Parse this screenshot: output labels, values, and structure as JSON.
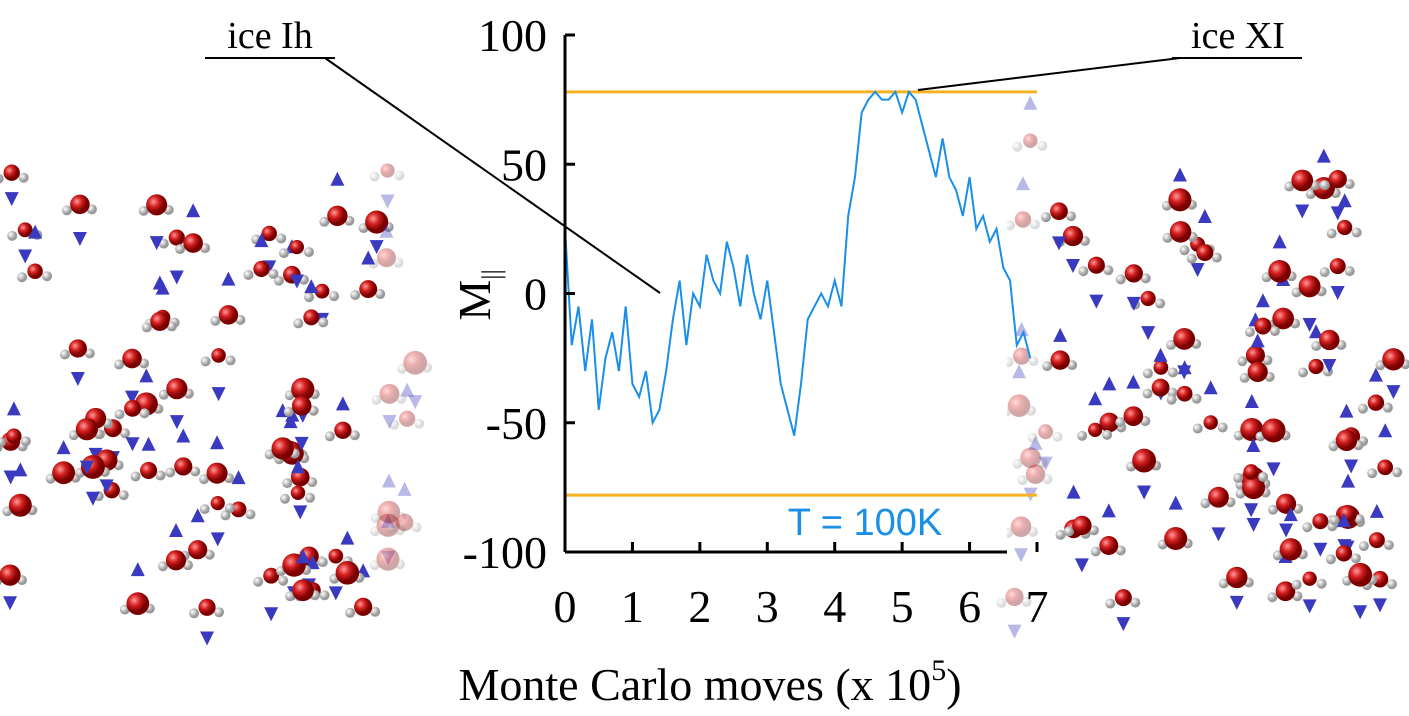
{
  "chart_data": {
    "type": "line",
    "xlabel": {
      "text": "Monte Carlo moves (x 10",
      "superscript": "5",
      "suffix": ")"
    },
    "ylabel": {
      "text": "M",
      "subscript": "||"
    },
    "annotations": [
      "ice Ih",
      "ice XI",
      "T = 100K"
    ],
    "xlim": [
      0,
      7
    ],
    "xticks": [
      0,
      1,
      2,
      3,
      4,
      5,
      6,
      7
    ],
    "ylim": [
      -100,
      100
    ],
    "yticks": [
      -100,
      -50,
      0,
      50,
      100
    ],
    "hlines": [
      {
        "value": 78,
        "color": "#f5b324"
      },
      {
        "value": -78,
        "color": "#f5b324"
      }
    ],
    "series": [
      {
        "color": "#1a8fe8",
        "x": [
          0,
          0.1,
          0.2,
          0.3,
          0.4,
          0.5,
          0.6,
          0.7,
          0.8,
          0.9,
          1.0,
          1.1,
          1.2,
          1.3,
          1.4,
          1.5,
          1.6,
          1.7,
          1.8,
          1.9,
          2.0,
          2.1,
          2.2,
          2.3,
          2.4,
          2.5,
          2.6,
          2.7,
          2.8,
          2.9,
          3.0,
          3.1,
          3.2,
          3.3,
          3.4,
          3.5,
          3.6,
          3.7,
          3.8,
          3.9,
          4.0,
          4.1,
          4.2,
          4.3,
          4.4,
          4.5,
          4.6,
          4.7,
          4.8,
          4.9,
          5.0,
          5.1,
          5.2,
          5.3,
          5.4,
          5.5,
          5.6,
          5.7,
          5.8,
          5.9,
          6.0,
          6.1,
          6.2,
          6.3,
          6.4,
          6.5,
          6.6,
          6.7,
          6.8,
          6.9
        ],
        "values": [
          25,
          -20,
          -5,
          -30,
          -10,
          -45,
          -25,
          -15,
          -30,
          -5,
          -35,
          -40,
          -30,
          -50,
          -45,
          -30,
          -10,
          5,
          -20,
          0,
          -5,
          15,
          5,
          0,
          20,
          10,
          -5,
          15,
          0,
          -10,
          5,
          -15,
          -35,
          -45,
          -55,
          -35,
          -10,
          -5,
          0,
          -5,
          5,
          -5,
          30,
          45,
          70,
          75,
          78,
          75,
          75,
          78,
          70,
          78,
          75,
          65,
          55,
          45,
          60,
          45,
          40,
          30,
          45,
          25,
          30,
          20,
          25,
          10,
          5,
          -20,
          -15,
          -25
        ]
      }
    ]
  }
}
